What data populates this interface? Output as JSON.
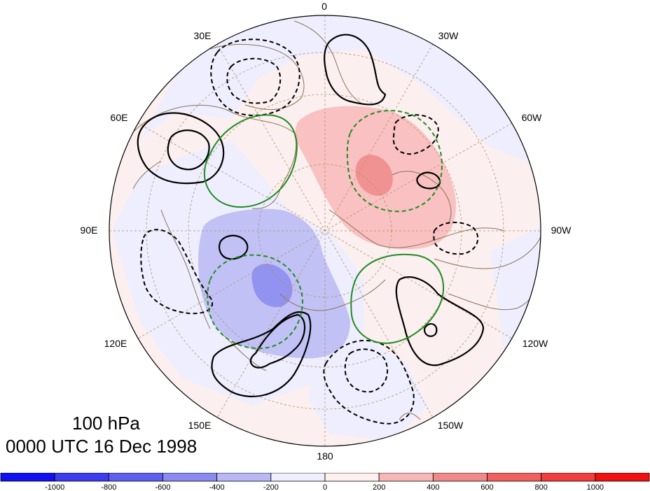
{
  "map": {
    "projection": "polar-stereographic-north",
    "longitude_labels": [
      {
        "text": "0",
        "lon": 0
      },
      {
        "text": "30E",
        "lon": 30
      },
      {
        "text": "60E",
        "lon": 60
      },
      {
        "text": "90E",
        "lon": 90
      },
      {
        "text": "120E",
        "lon": 120
      },
      {
        "text": "150E",
        "lon": 150
      },
      {
        "text": "180",
        "lon": 180
      },
      {
        "text": "150W",
        "lon": -150
      },
      {
        "text": "120W",
        "lon": -120
      },
      {
        "text": "90W",
        "lon": -90
      },
      {
        "text": "60W",
        "lon": -60
      },
      {
        "text": "30W",
        "lon": -30
      }
    ],
    "colors": {
      "ocean_bg": "#fbefef",
      "land_outline": "#8b7355",
      "grid": "#b09060",
      "contour_positive": "#000000",
      "contour_green": "#228b22"
    }
  },
  "title": {
    "level": "100 hPa",
    "timestamp": "0000 UTC 16 Dec 1998"
  },
  "colorbar": {
    "ticks": [
      "-1000",
      "-800",
      "-600",
      "-400",
      "-200",
      "0",
      "200",
      "400",
      "600",
      "800",
      "1000"
    ],
    "colors": [
      "#1010f0",
      "#3d3df0",
      "#6060f0",
      "#8a8af0",
      "#b8b8f5",
      "#eeeeff",
      "#fff0f0",
      "#f8b8b8",
      "#f08a8a",
      "#f06060",
      "#f03d3d",
      "#f01010"
    ]
  }
}
